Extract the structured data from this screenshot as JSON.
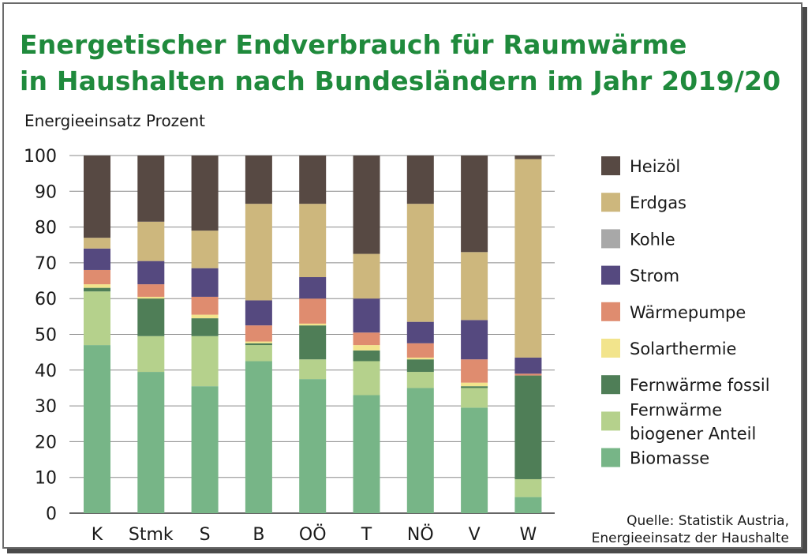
{
  "title_lines": [
    "Energetischer Endverbrauch für Raumwärme",
    "in Haushalten nach Bundesländern im Jahr 2019/20"
  ],
  "subtitle": "Energieeinsatz Prozent",
  "source_lines": [
    "Quelle: Statistik Austria,",
    "Energieeinsatz der Haushalte"
  ],
  "colors": {
    "title": "#1f8a3c",
    "frame": "#6a6a6a",
    "gridline": "#8a8a8a"
  },
  "chart_data": {
    "type": "bar",
    "stacked": true,
    "title": "Energetischer Endverbrauch für Raumwärme in Haushalten nach Bundesländern im Jahr 2019/20",
    "xlabel": "",
    "ylabel": "Energieeinsatz Prozent",
    "ylim": [
      0,
      100
    ],
    "yticks": [
      0,
      10,
      20,
      30,
      40,
      50,
      60,
      70,
      80,
      90,
      100
    ],
    "grid": true,
    "legend_position": "right",
    "categories": [
      "K",
      "Stmk",
      "S",
      "B",
      "OÖ",
      "T",
      "NÖ",
      "V",
      "W"
    ],
    "series": [
      {
        "name": "Biomasse",
        "color": "#77b587",
        "values": [
          47,
          39.5,
          35.5,
          42.5,
          37.5,
          33,
          35,
          29.5,
          4.5
        ]
      },
      {
        "name": "Fernwärme\nbiogener Anteil",
        "color": "#b5d18c",
        "values": [
          15,
          10,
          14,
          4.5,
          5.5,
          9.5,
          4.5,
          5.5,
          5
        ]
      },
      {
        "name": "Fernwärme fossil",
        "color": "#4f7e57",
        "values": [
          1,
          10.5,
          5,
          0.5,
          9.5,
          3,
          3.5,
          0.5,
          29
        ]
      },
      {
        "name": "Solarthermie",
        "color": "#f2e48c",
        "values": [
          1,
          0.5,
          1,
          0.5,
          0.5,
          1.5,
          0.5,
          1,
          0
        ]
      },
      {
        "name": "Wärmepumpe",
        "color": "#df8c6f",
        "values": [
          4,
          3.5,
          5,
          4.5,
          7,
          3.5,
          4,
          6.5,
          0.5
        ]
      },
      {
        "name": "Strom",
        "color": "#55497f",
        "values": [
          6,
          6.5,
          8,
          7,
          6,
          9.5,
          6,
          11,
          4.5
        ]
      },
      {
        "name": "Kohle",
        "color": "#a8a8a8",
        "values": [
          0,
          0,
          0,
          0,
          0,
          0,
          0,
          0,
          0
        ]
      },
      {
        "name": "Erdgas",
        "color": "#cdb77d",
        "values": [
          3,
          11,
          10.5,
          27,
          20.5,
          12.5,
          33,
          19,
          55.5
        ]
      },
      {
        "name": "Heizöl",
        "color": "#574943",
        "values": [
          23,
          18.5,
          21,
          13.5,
          13.5,
          27.5,
          13.5,
          27,
          1
        ]
      }
    ]
  }
}
